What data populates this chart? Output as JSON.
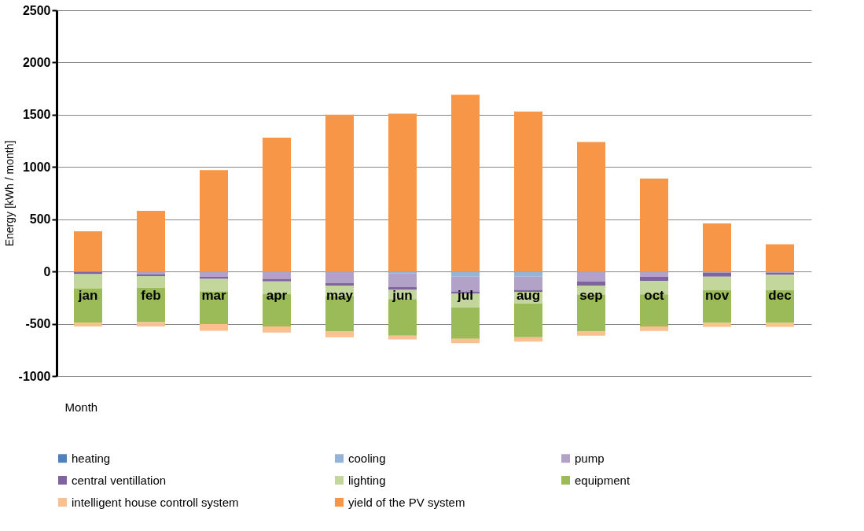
{
  "chart_data": {
    "type": "bar",
    "stacked": true,
    "xlabel": "Month",
    "ylabel": "Energy [kWh / month]",
    "categories": [
      "jan",
      "feb",
      "mar",
      "apr",
      "may",
      "jun",
      "jul",
      "aug",
      "sep",
      "oct",
      "nov",
      "dec"
    ],
    "ylim": [
      -1000,
      2500
    ],
    "yticks": [
      -1000,
      -500,
      0,
      500,
      1000,
      1500,
      2000,
      2500
    ],
    "grid": "y",
    "legend": "bottom",
    "series": [
      {
        "name": "heating",
        "color": "#4f81bd",
        "values": [
          null,
          null,
          null,
          null,
          null,
          null,
          null,
          null,
          null,
          null,
          null,
          null
        ]
      },
      {
        "name": "cooling",
        "color": "#95b3d7",
        "values": [
          null,
          null,
          null,
          null,
          null,
          -20,
          -50,
          -50,
          null,
          null,
          null,
          null
        ]
      },
      {
        "name": "pump",
        "color": "#b3a2c7",
        "values": [
          -5,
          -25,
          -50,
          -70,
          -110,
          -130,
          -140,
          -125,
          -95,
          -50,
          -10,
          -10
        ]
      },
      {
        "name": "central ventillation",
        "color": "#8064a2",
        "values": [
          -20,
          -20,
          -20,
          -25,
          -25,
          -25,
          -20,
          -20,
          -40,
          -40,
          -40,
          -20
        ]
      },
      {
        "name": "lighting",
        "color": "#c3d69b",
        "values": [
          -135,
          -110,
          -120,
          -120,
          -100,
          -90,
          -135,
          -110,
          -90,
          -130,
          -130,
          -150
        ]
      },
      {
        "name": "equipment",
        "color": "#9bbb59",
        "values": [
          -330,
          -330,
          -313,
          -310,
          -340,
          -350,
          -300,
          -325,
          -350,
          -305,
          -310,
          -310
        ]
      },
      {
        "name": "intelligent house controll system",
        "color": "#fac090",
        "values": [
          -35,
          -40,
          -65,
          -60,
          -55,
          -35,
          -40,
          -40,
          -40,
          -45,
          -40,
          -40
        ]
      },
      {
        "name": "yield of the PV system",
        "color": "#f79646",
        "values": [
          385,
          580,
          970,
          1280,
          1500,
          1510,
          1690,
          1530,
          1240,
          890,
          460,
          260
        ]
      }
    ]
  }
}
